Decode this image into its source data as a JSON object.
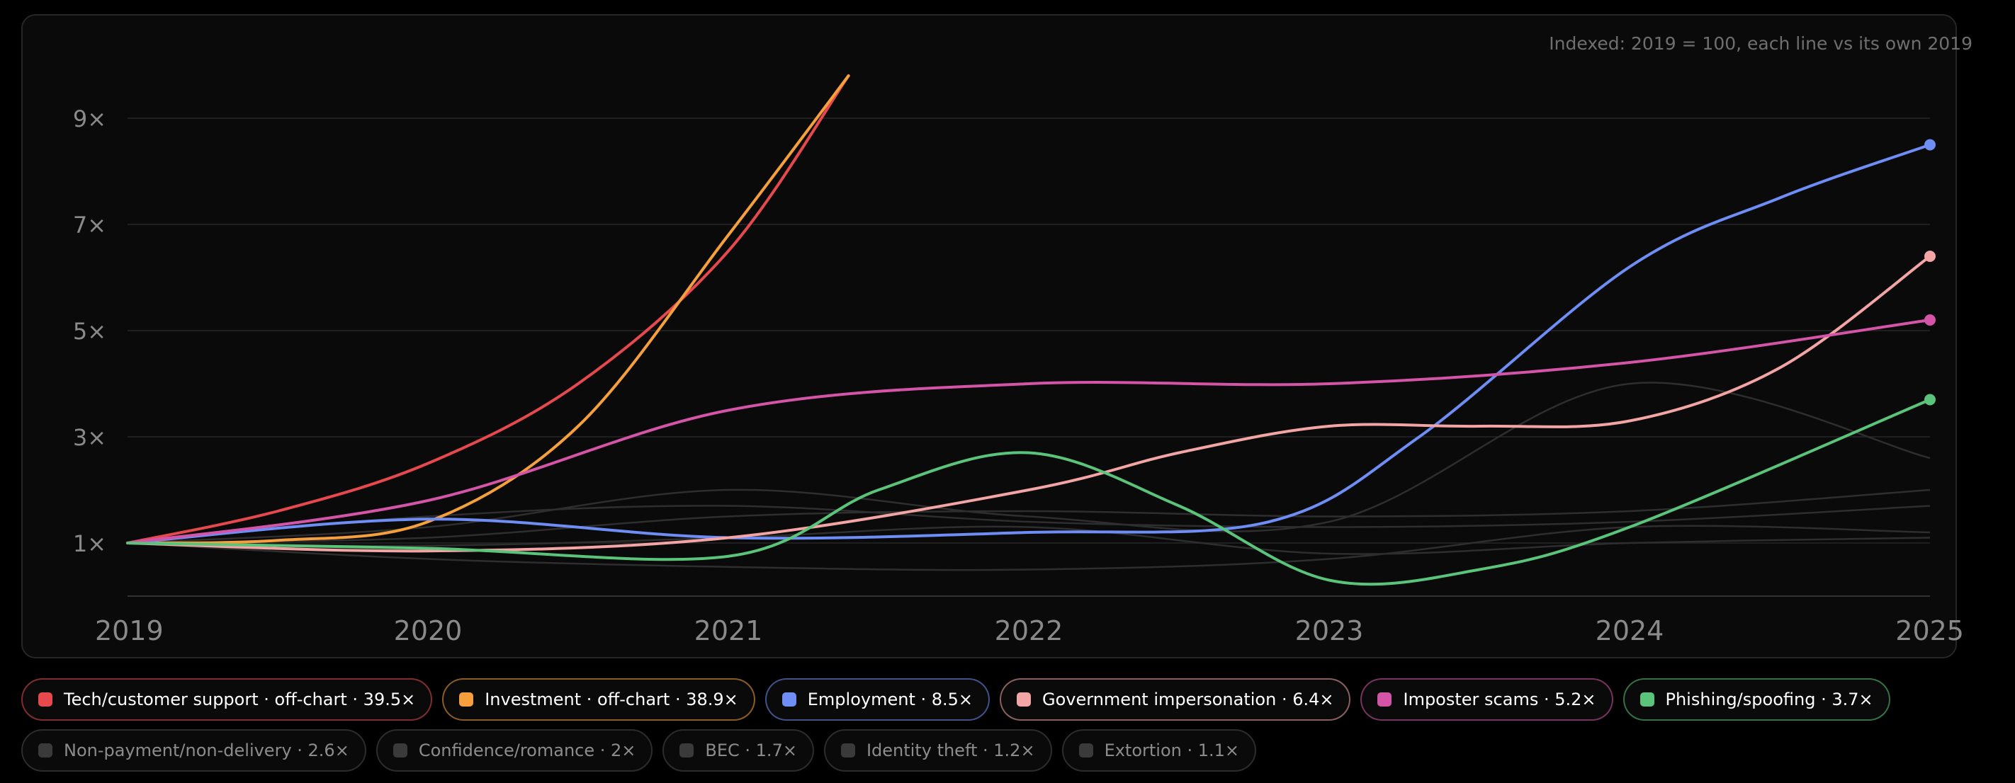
{
  "chart_data": {
    "type": "line",
    "note": "Indexed: 2019 = 100, each line vs its own 2019",
    "x": [
      "2019",
      "2020",
      "2021",
      "2022",
      "2023",
      "2024",
      "2025"
    ],
    "y_ticks": [
      "1×",
      "3×",
      "5×",
      "7×",
      "9×"
    ],
    "ylim": [
      0,
      9.8
    ],
    "grid": true,
    "highlighted_series": [
      {
        "name": "Tech/customer support",
        "label": "Tech/customer support · off-chart · 39.5×",
        "color": "#e5484d",
        "points": [
          [
            2019,
            1
          ],
          [
            2019.5,
            1.6
          ],
          [
            2020,
            2.5
          ],
          [
            2020.5,
            4.0
          ],
          [
            2021,
            6.5
          ],
          [
            2021.4,
            9.8
          ]
        ]
      },
      {
        "name": "Investment",
        "label": "Investment · off-chart · 38.9×",
        "color": "#f5a03c",
        "points": [
          [
            2019,
            1
          ],
          [
            2019.5,
            1.05
          ],
          [
            2020,
            1.4
          ],
          [
            2020.5,
            3.2
          ],
          [
            2021,
            6.8
          ],
          [
            2021.4,
            9.8
          ]
        ]
      },
      {
        "name": "Employment",
        "label": "Employment · 8.5×",
        "color": "#6e8ef5",
        "points": [
          [
            2019,
            1
          ],
          [
            2020,
            1.45
          ],
          [
            2021,
            1.1
          ],
          [
            2022,
            1.2
          ],
          [
            2022.8,
            1.4
          ],
          [
            2023.3,
            3.0
          ],
          [
            2024,
            6.2
          ],
          [
            2024.5,
            7.5
          ],
          [
            2025,
            8.5
          ]
        ]
      },
      {
        "name": "Government impersonation",
        "label": "Government impersonation · 6.4×",
        "color": "#f3a5a5",
        "points": [
          [
            2019,
            1
          ],
          [
            2020,
            0.85
          ],
          [
            2021,
            1.1
          ],
          [
            2022,
            2.0
          ],
          [
            2022.5,
            2.7
          ],
          [
            2023,
            3.2
          ],
          [
            2023.5,
            3.2
          ],
          [
            2024,
            3.3
          ],
          [
            2024.5,
            4.3
          ],
          [
            2025,
            6.4
          ]
        ]
      },
      {
        "name": "Imposter scams",
        "label": "Imposter scams · 5.2×",
        "color": "#d454a8",
        "points": [
          [
            2019,
            1
          ],
          [
            2020,
            1.8
          ],
          [
            2021,
            3.5
          ],
          [
            2022,
            4.0
          ],
          [
            2023,
            4.0
          ],
          [
            2024,
            4.4
          ],
          [
            2025,
            5.2
          ]
        ]
      },
      {
        "name": "Phishing/spoofing",
        "label": "Phishing/spoofing · 3.7×",
        "color": "#5ac47a",
        "points": [
          [
            2019,
            1
          ],
          [
            2020,
            0.9
          ],
          [
            2021,
            0.75
          ],
          [
            2021.5,
            2.0
          ],
          [
            2022,
            2.7
          ],
          [
            2022.5,
            1.7
          ],
          [
            2023,
            0.3
          ],
          [
            2023.5,
            0.5
          ],
          [
            2024,
            1.3
          ],
          [
            2025,
            3.7
          ]
        ]
      }
    ],
    "muted_series": [
      {
        "name": "Non-payment/non-delivery",
        "label": "Non-payment/non-delivery · 2.6×",
        "points": [
          [
            2019,
            1
          ],
          [
            2020,
            1.3
          ],
          [
            2021,
            2.0
          ],
          [
            2022,
            1.5
          ],
          [
            2023,
            1.4
          ],
          [
            2024,
            4.0
          ],
          [
            2025,
            2.6
          ]
        ]
      },
      {
        "name": "Confidence/romance",
        "label": "Confidence/romance · 2×",
        "points": [
          [
            2019,
            1
          ],
          [
            2020,
            1.1
          ],
          [
            2021,
            1.5
          ],
          [
            2022,
            1.6
          ],
          [
            2023,
            1.5
          ],
          [
            2024,
            1.6
          ],
          [
            2025,
            2.0
          ]
        ]
      },
      {
        "name": "BEC",
        "label": "BEC · 1.7×",
        "points": [
          [
            2019,
            1
          ],
          [
            2020,
            1.5
          ],
          [
            2021,
            1.7
          ],
          [
            2022,
            1.4
          ],
          [
            2023,
            1.3
          ],
          [
            2024,
            1.4
          ],
          [
            2025,
            1.7
          ]
        ]
      },
      {
        "name": "Identity theft",
        "label": "Identity theft · 1.2×",
        "points": [
          [
            2019,
            1
          ],
          [
            2020,
            0.7
          ],
          [
            2021,
            0.55
          ],
          [
            2022,
            0.5
          ],
          [
            2023,
            0.7
          ],
          [
            2024,
            1.3
          ],
          [
            2025,
            1.2
          ]
        ]
      },
      {
        "name": "Extortion",
        "label": "Extortion · 1.1×",
        "points": [
          [
            2019,
            1
          ],
          [
            2020,
            0.95
          ],
          [
            2021,
            1.1
          ],
          [
            2022,
            1.3
          ],
          [
            2023,
            0.8
          ],
          [
            2024,
            1.0
          ],
          [
            2025,
            1.1
          ]
        ]
      }
    ]
  },
  "colors": {
    "grid": "#1f1f1f",
    "axis": "#333333",
    "muted_line": "#2e2e2e"
  }
}
